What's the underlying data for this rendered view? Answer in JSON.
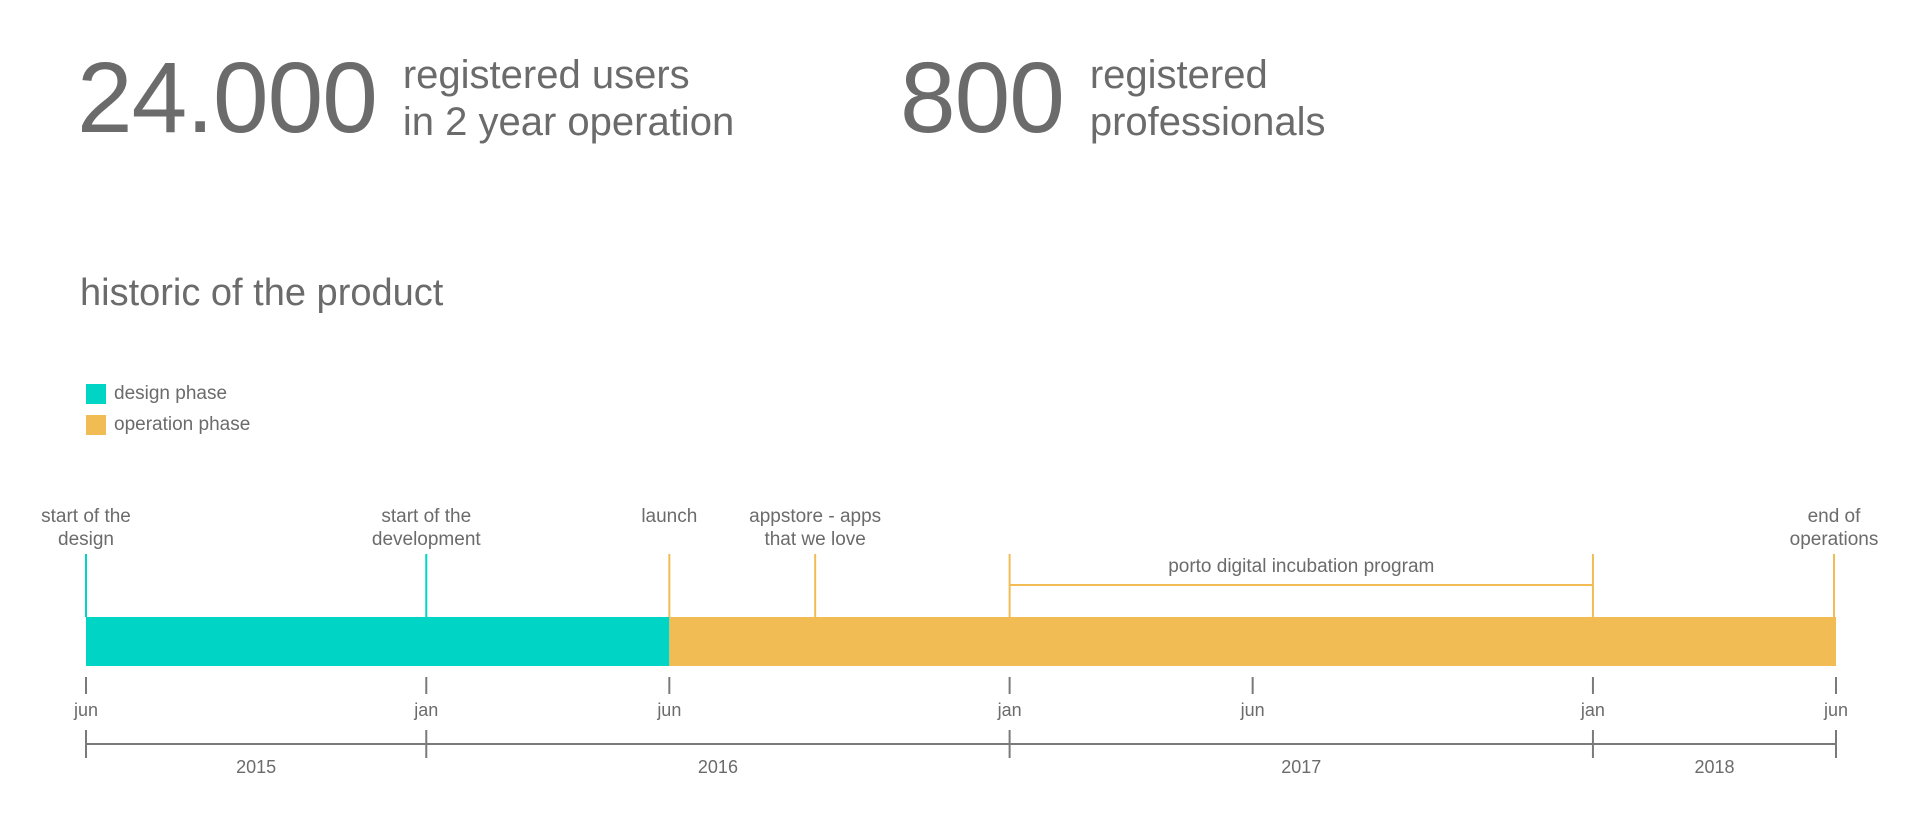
{
  "stats": [
    {
      "number": "24.000",
      "line1": "registered users",
      "line2": "in 2 year operation"
    },
    {
      "number": "800",
      "line1": "registered",
      "line2": "professionals"
    }
  ],
  "section_title": "historic of the product",
  "colors": {
    "design": "#00d4c4",
    "operation": "#f2bc55",
    "text": "#6b6b6b",
    "axis": "#7a7a7a"
  },
  "legend": [
    {
      "label": "design phase",
      "phase": "design"
    },
    {
      "label": "operation phase",
      "phase": "operation"
    }
  ],
  "timeline": {
    "start": "2015-06",
    "end": "2018-06",
    "phases": [
      {
        "name": "design",
        "start": "2015-06",
        "end": "2016-06"
      },
      {
        "name": "operation",
        "start": "2016-06",
        "end": "2018-06"
      }
    ],
    "milestones": [
      {
        "date": "2015-06",
        "lines": [
          "start of the",
          "design"
        ],
        "phase": "design"
      },
      {
        "date": "2016-01",
        "lines": [
          "start of the",
          "development"
        ],
        "phase": "design"
      },
      {
        "date": "2016-06",
        "lines": [
          "launch"
        ],
        "phase": "operation"
      },
      {
        "date": "2016-09",
        "lines": [
          "appstore - apps",
          "that we love"
        ],
        "phase": "operation"
      },
      {
        "date": "2018-06",
        "lines": [
          "end of",
          "operations"
        ],
        "phase": "operation"
      }
    ],
    "programs": [
      {
        "label": "porto digital incubation program",
        "start": "2017-01",
        "end": "2018-01"
      }
    ],
    "ticks": [
      {
        "date": "2015-06",
        "label": "jun"
      },
      {
        "date": "2016-01",
        "label": "jan"
      },
      {
        "date": "2016-06",
        "label": "jun"
      },
      {
        "date": "2017-01",
        "label": "jan"
      },
      {
        "date": "2017-06",
        "label": "jun"
      },
      {
        "date": "2018-01",
        "label": "jan"
      },
      {
        "date": "2018-06",
        "label": "jun"
      }
    ],
    "year_bounds": [
      "2015-06",
      "2016-01",
      "2017-01",
      "2018-01",
      "2018-06"
    ],
    "years": [
      "2015",
      "2016",
      "2017",
      "2018"
    ]
  }
}
